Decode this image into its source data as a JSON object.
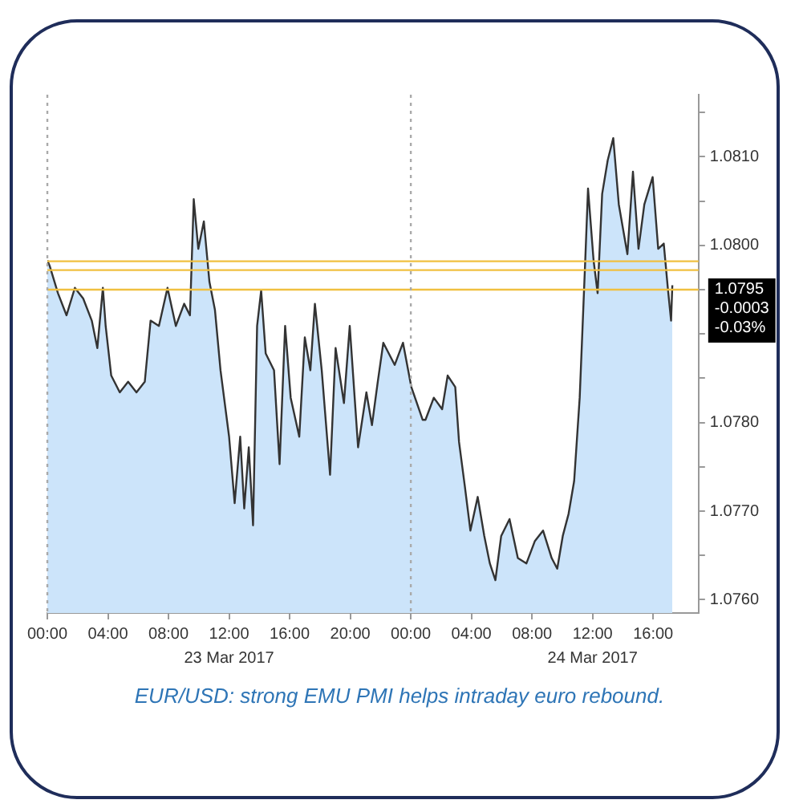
{
  "chart_data": {
    "type": "area",
    "annotations": [
      "EUR/USD: strong EMU PMI helps intraday euro rebound."
    ],
    "series": [
      {
        "color": "#cce4fa",
        "x": [
          "2017-03-23T00:00",
          "2017-03-23T00:09",
          "2017-03-23T00:42",
          "2017-03-23T01:16",
          "2017-03-23T01:49",
          "2017-03-23T02:22",
          "2017-03-23T02:56",
          "2017-03-23T03:18",
          "2017-03-23T03:40",
          "2017-03-23T03:51",
          "2017-03-23T04:13",
          "2017-03-23T04:47",
          "2017-03-23T05:20",
          "2017-03-23T05:53",
          "2017-03-23T06:26",
          "2017-03-23T06:49",
          "2017-03-23T07:22",
          "2017-03-23T07:56",
          "2017-03-23T08:29",
          "2017-03-23T09:02",
          "2017-03-23T09:25",
          "2017-03-23T09:40",
          "2017-03-23T09:58",
          "2017-03-23T10:20",
          "2017-03-23T10:42",
          "2017-03-23T11:04",
          "2017-03-23T11:26",
          "2017-03-23T12:00",
          "2017-03-23T12:22",
          "2017-03-23T12:44",
          "2017-03-23T13:00",
          "2017-03-23T13:18",
          "2017-03-23T13:35",
          "2017-03-23T13:51",
          "2017-03-23T14:07",
          "2017-03-23T14:25",
          "2017-03-23T14:58",
          "2017-03-23T15:20",
          "2017-03-23T15:42",
          "2017-03-23T16:04",
          "2017-03-23T16:38",
          "2017-03-23T17:00",
          "2017-03-23T17:22",
          "2017-03-23T17:40",
          "2017-03-23T18:07",
          "2017-03-23T18:40",
          "2017-03-23T19:02",
          "2017-03-23T19:35",
          "2017-03-23T19:58",
          "2017-03-23T20:31",
          "2017-03-23T21:04",
          "2017-03-23T21:26",
          "2017-03-23T21:49",
          "2017-03-23T22:11",
          "2017-03-23T22:56",
          "2017-03-23T23:29",
          "2017-03-24T00:02",
          "2017-03-24T00:47",
          "2017-03-24T00:58",
          "2017-03-24T01:31",
          "2017-03-24T02:04",
          "2017-03-24T02:26",
          "2017-03-24T02:56",
          "2017-03-24T03:11",
          "2017-03-24T03:34",
          "2017-03-24T03:56",
          "2017-03-24T04:25",
          "2017-03-24T04:51",
          "2017-03-24T05:13",
          "2017-03-24T05:35",
          "2017-03-24T05:58",
          "2017-03-24T06:31",
          "2017-03-24T07:04",
          "2017-03-24T07:38",
          "2017-03-24T08:11",
          "2017-03-24T08:44",
          "2017-03-24T09:18",
          "2017-03-24T09:40",
          "2017-03-24T10:02",
          "2017-03-24T10:25",
          "2017-03-24T10:47",
          "2017-03-24T11:09",
          "2017-03-24T11:31",
          "2017-03-24T11:42",
          "2017-03-24T12:04",
          "2017-03-24T12:20",
          "2017-03-24T12:38",
          "2017-03-24T13:00",
          "2017-03-24T13:22",
          "2017-03-24T13:44",
          "2017-03-24T14:18",
          "2017-03-24T14:40",
          "2017-03-24T15:02",
          "2017-03-24T15:25",
          "2017-03-24T15:58",
          "2017-03-24T16:20",
          "2017-03-24T16:42",
          "2017-03-24T16:58",
          "2017-03-24T17:11",
          "2017-03-24T17:16"
        ],
        "values": [
          1.07983,
          1.07977,
          1.07946,
          1.07921,
          1.07952,
          1.0794,
          1.07915,
          1.07884,
          1.07952,
          1.07909,
          1.07853,
          1.07834,
          1.07846,
          1.07834,
          1.07846,
          1.07915,
          1.07909,
          1.07952,
          1.07909,
          1.07934,
          1.07921,
          1.08052,
          1.07996,
          1.08027,
          1.07959,
          1.07927,
          1.07859,
          1.07784,
          1.07709,
          1.07784,
          1.07703,
          1.07772,
          1.07684,
          1.07909,
          1.07949,
          1.07878,
          1.07859,
          1.07753,
          1.07909,
          1.07828,
          1.07784,
          1.07896,
          1.07859,
          1.07934,
          1.07859,
          1.07741,
          1.07884,
          1.07822,
          1.07909,
          1.07772,
          1.07834,
          1.07797,
          1.07846,
          1.0789,
          1.07865,
          1.0789,
          1.0784,
          1.07803,
          1.07803,
          1.07828,
          1.07815,
          1.07853,
          1.0784,
          1.07778,
          1.07728,
          1.07678,
          1.07716,
          1.07672,
          1.07641,
          1.07622,
          1.07672,
          1.07691,
          1.07647,
          1.07641,
          1.07666,
          1.07678,
          1.07647,
          1.07635,
          1.07672,
          1.07697,
          1.07734,
          1.07828,
          1.07983,
          1.08064,
          1.07983,
          1.07946,
          1.08058,
          1.08096,
          1.08121,
          1.08046,
          1.0799,
          1.08083,
          1.07996,
          1.08046,
          1.08077,
          1.07996,
          1.08002,
          1.07952,
          1.07915,
          1.07955
        ]
      }
    ],
    "xlim": [
      "2017-03-23T00:00",
      "2017-03-24T19:00"
    ],
    "xticks": [
      {
        "value": "2017-03-23T00:00",
        "label": "00:00"
      },
      {
        "value": "2017-03-23T04:00",
        "label": "04:00"
      },
      {
        "value": "2017-03-23T08:00",
        "label": "08:00"
      },
      {
        "value": "2017-03-23T12:00",
        "label": "12:00"
      },
      {
        "value": "2017-03-23T16:00",
        "label": "16:00"
      },
      {
        "value": "2017-03-23T20:00",
        "label": "20:00"
      },
      {
        "value": "2017-03-24T00:00",
        "label": "00:00"
      },
      {
        "value": "2017-03-24T04:00",
        "label": "04:00"
      },
      {
        "value": "2017-03-24T08:00",
        "label": "08:00"
      },
      {
        "value": "2017-03-24T12:00",
        "label": "12:00"
      },
      {
        "value": "2017-03-24T16:00",
        "label": "16:00"
      }
    ],
    "x2lim": [
      "2017-03-23T00:00",
      "2017-03-24T19:00"
    ],
    "x2ticks": [
      {
        "value": "2017-03-23T12:00",
        "label": "23 Mar 2017"
      },
      {
        "value": "2017-03-24T12:00",
        "label": "24 Mar 2017"
      }
    ],
    "ylim": [
      1.07585,
      1.0817
    ],
    "yticks": [
      {
        "value": 1.076,
        "label": "1.0760"
      },
      {
        "value": 1.0765,
        "label": null
      },
      {
        "value": 1.077,
        "label": "1.0770"
      },
      {
        "value": 1.0775,
        "label": null
      },
      {
        "value": 1.078,
        "label": "1.0780"
      },
      {
        "value": 1.0785,
        "label": null
      },
      {
        "value": 1.079,
        "label": null
      },
      {
        "value": 1.0795,
        "label": null
      },
      {
        "value": 1.08,
        "label": "1.0800"
      },
      {
        "value": 1.0805,
        "label": null
      },
      {
        "value": 1.081,
        "label": "1.0810"
      },
      {
        "value": 1.0815,
        "label": null
      }
    ],
    "ref_lines": [
      {
        "axis": "y",
        "value": 1.07982,
        "color": "#f0c040"
      },
      {
        "axis": "y",
        "value": 1.07972,
        "color": "#f0c040"
      },
      {
        "axis": "y",
        "value": 1.0795,
        "color": "#f0c040",
        "label": "1.0795\n-0.0003\n-0.03%"
      },
      {
        "axis": "x",
        "value": "2017-03-23T00:00",
        "color": "#aaaaaa",
        "line_style": "dotted"
      },
      {
        "axis": "x",
        "value": "2017-03-24T00:00",
        "color": "#aaaaaa",
        "line_style": "dotted"
      }
    ],
    "grid": false,
    "legend": false,
    "marker": "none"
  }
}
